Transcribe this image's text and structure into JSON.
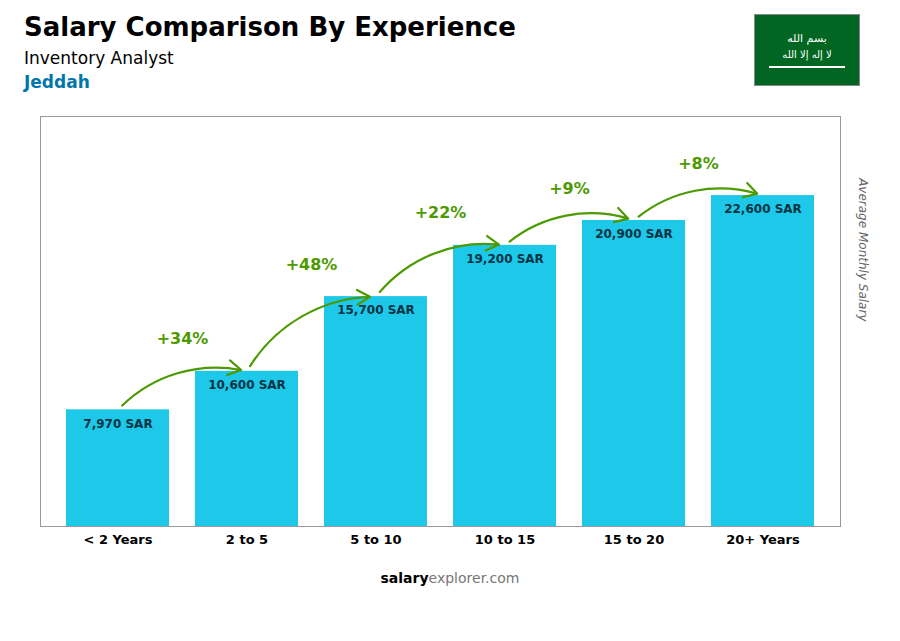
{
  "chart_data": {
    "type": "bar",
    "title": "Salary Comparison By Experience",
    "subtitle": "Inventory Analyst",
    "annotations": [
      "Jeddah",
      "salary",
      "explorer.com",
      "بسم الله",
      "لا إله إلا الله"
    ],
    "categories": [
      "< 2 Years",
      "2 to 5",
      "5 to 10",
      "10 to 15",
      "15 to 20",
      "20+ Years"
    ],
    "values": [
      7970,
      10600,
      15700,
      19200,
      20900,
      22600
    ],
    "value_labels": [
      "7,970 SAR",
      "10,600 SAR",
      "15,700 SAR",
      "19,200 SAR",
      "20,900 SAR",
      "22,600 SAR"
    ],
    "change_labels": [
      null,
      "+34%",
      "+48%",
      "+22%",
      "+9%",
      "+8%"
    ],
    "ylabel": "Average Monthly Salary",
    "ylim": [
      0,
      28000
    ],
    "color": "#1ec8e8",
    "data_labels": true,
    "tick_labels": "x",
    "grid": false
  }
}
